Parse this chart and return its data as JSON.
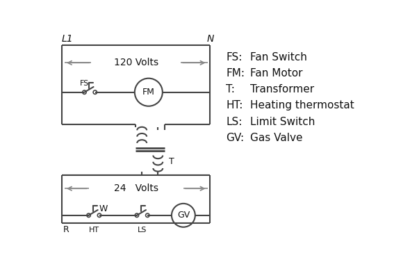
{
  "background_color": "#ffffff",
  "line_color": "#444444",
  "text_color": "#111111",
  "arrow_color": "#888888",
  "voltage_120": "120 Volts",
  "voltage_24": "24   Volts",
  "label_L1": "L1",
  "label_N": "N",
  "label_R": "R",
  "label_W": "W",
  "label_HT": "HT",
  "label_LS": "LS",
  "label_T": "T",
  "legend_items": [
    [
      "FS:",
      "Fan Switch"
    ],
    [
      "FM:",
      "Fan Motor"
    ],
    [
      "T:",
      "Transformer"
    ],
    [
      "HT:",
      "Heating thermostat"
    ],
    [
      "LS:",
      "Limit Switch"
    ],
    [
      "GV:",
      "Gas Valve"
    ]
  ]
}
